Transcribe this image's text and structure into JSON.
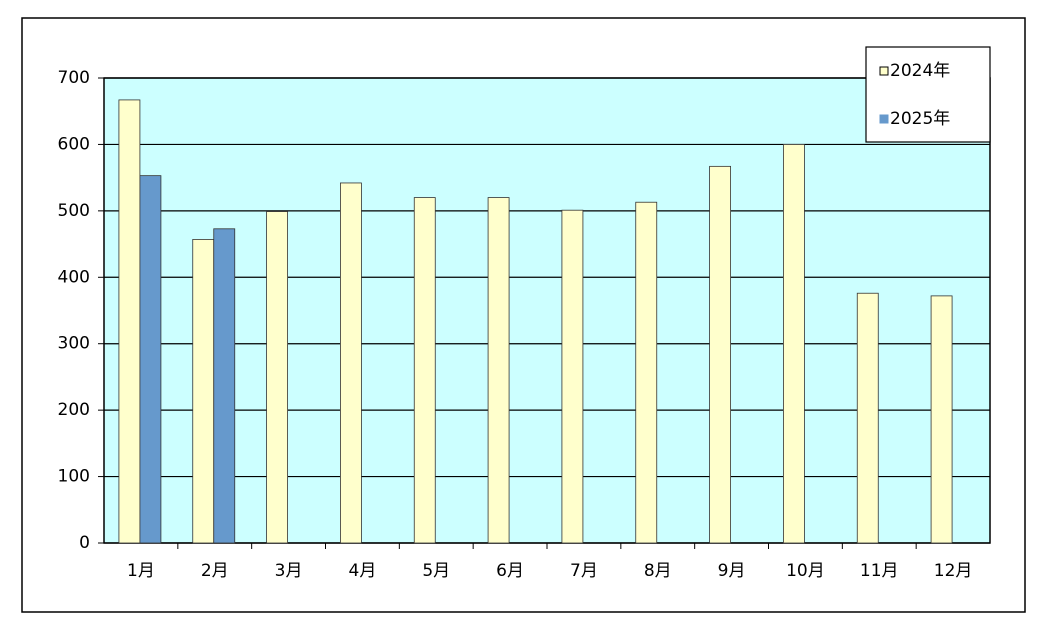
{
  "chart_data": {
    "type": "bar",
    "categories": [
      "1月",
      "2月",
      "3月",
      "4月",
      "5月",
      "6月",
      "7月",
      "8月",
      "9月",
      "10月",
      "11月",
      "12月"
    ],
    "series": [
      {
        "name": "2024年",
        "color": "#ffffcc",
        "values": [
          667,
          457,
          499,
          542,
          520,
          520,
          501,
          513,
          567,
          600,
          376,
          372
        ]
      },
      {
        "name": "2025年",
        "color": "#6699cc",
        "values": [
          553,
          473,
          null,
          null,
          null,
          null,
          null,
          null,
          null,
          null,
          null,
          null
        ]
      }
    ],
    "ylim": [
      0,
      700
    ],
    "yticks": [
      0,
      100,
      200,
      300,
      400,
      500,
      600,
      700
    ],
    "grid": true,
    "background": "#ccffff",
    "legend": "top-right"
  }
}
